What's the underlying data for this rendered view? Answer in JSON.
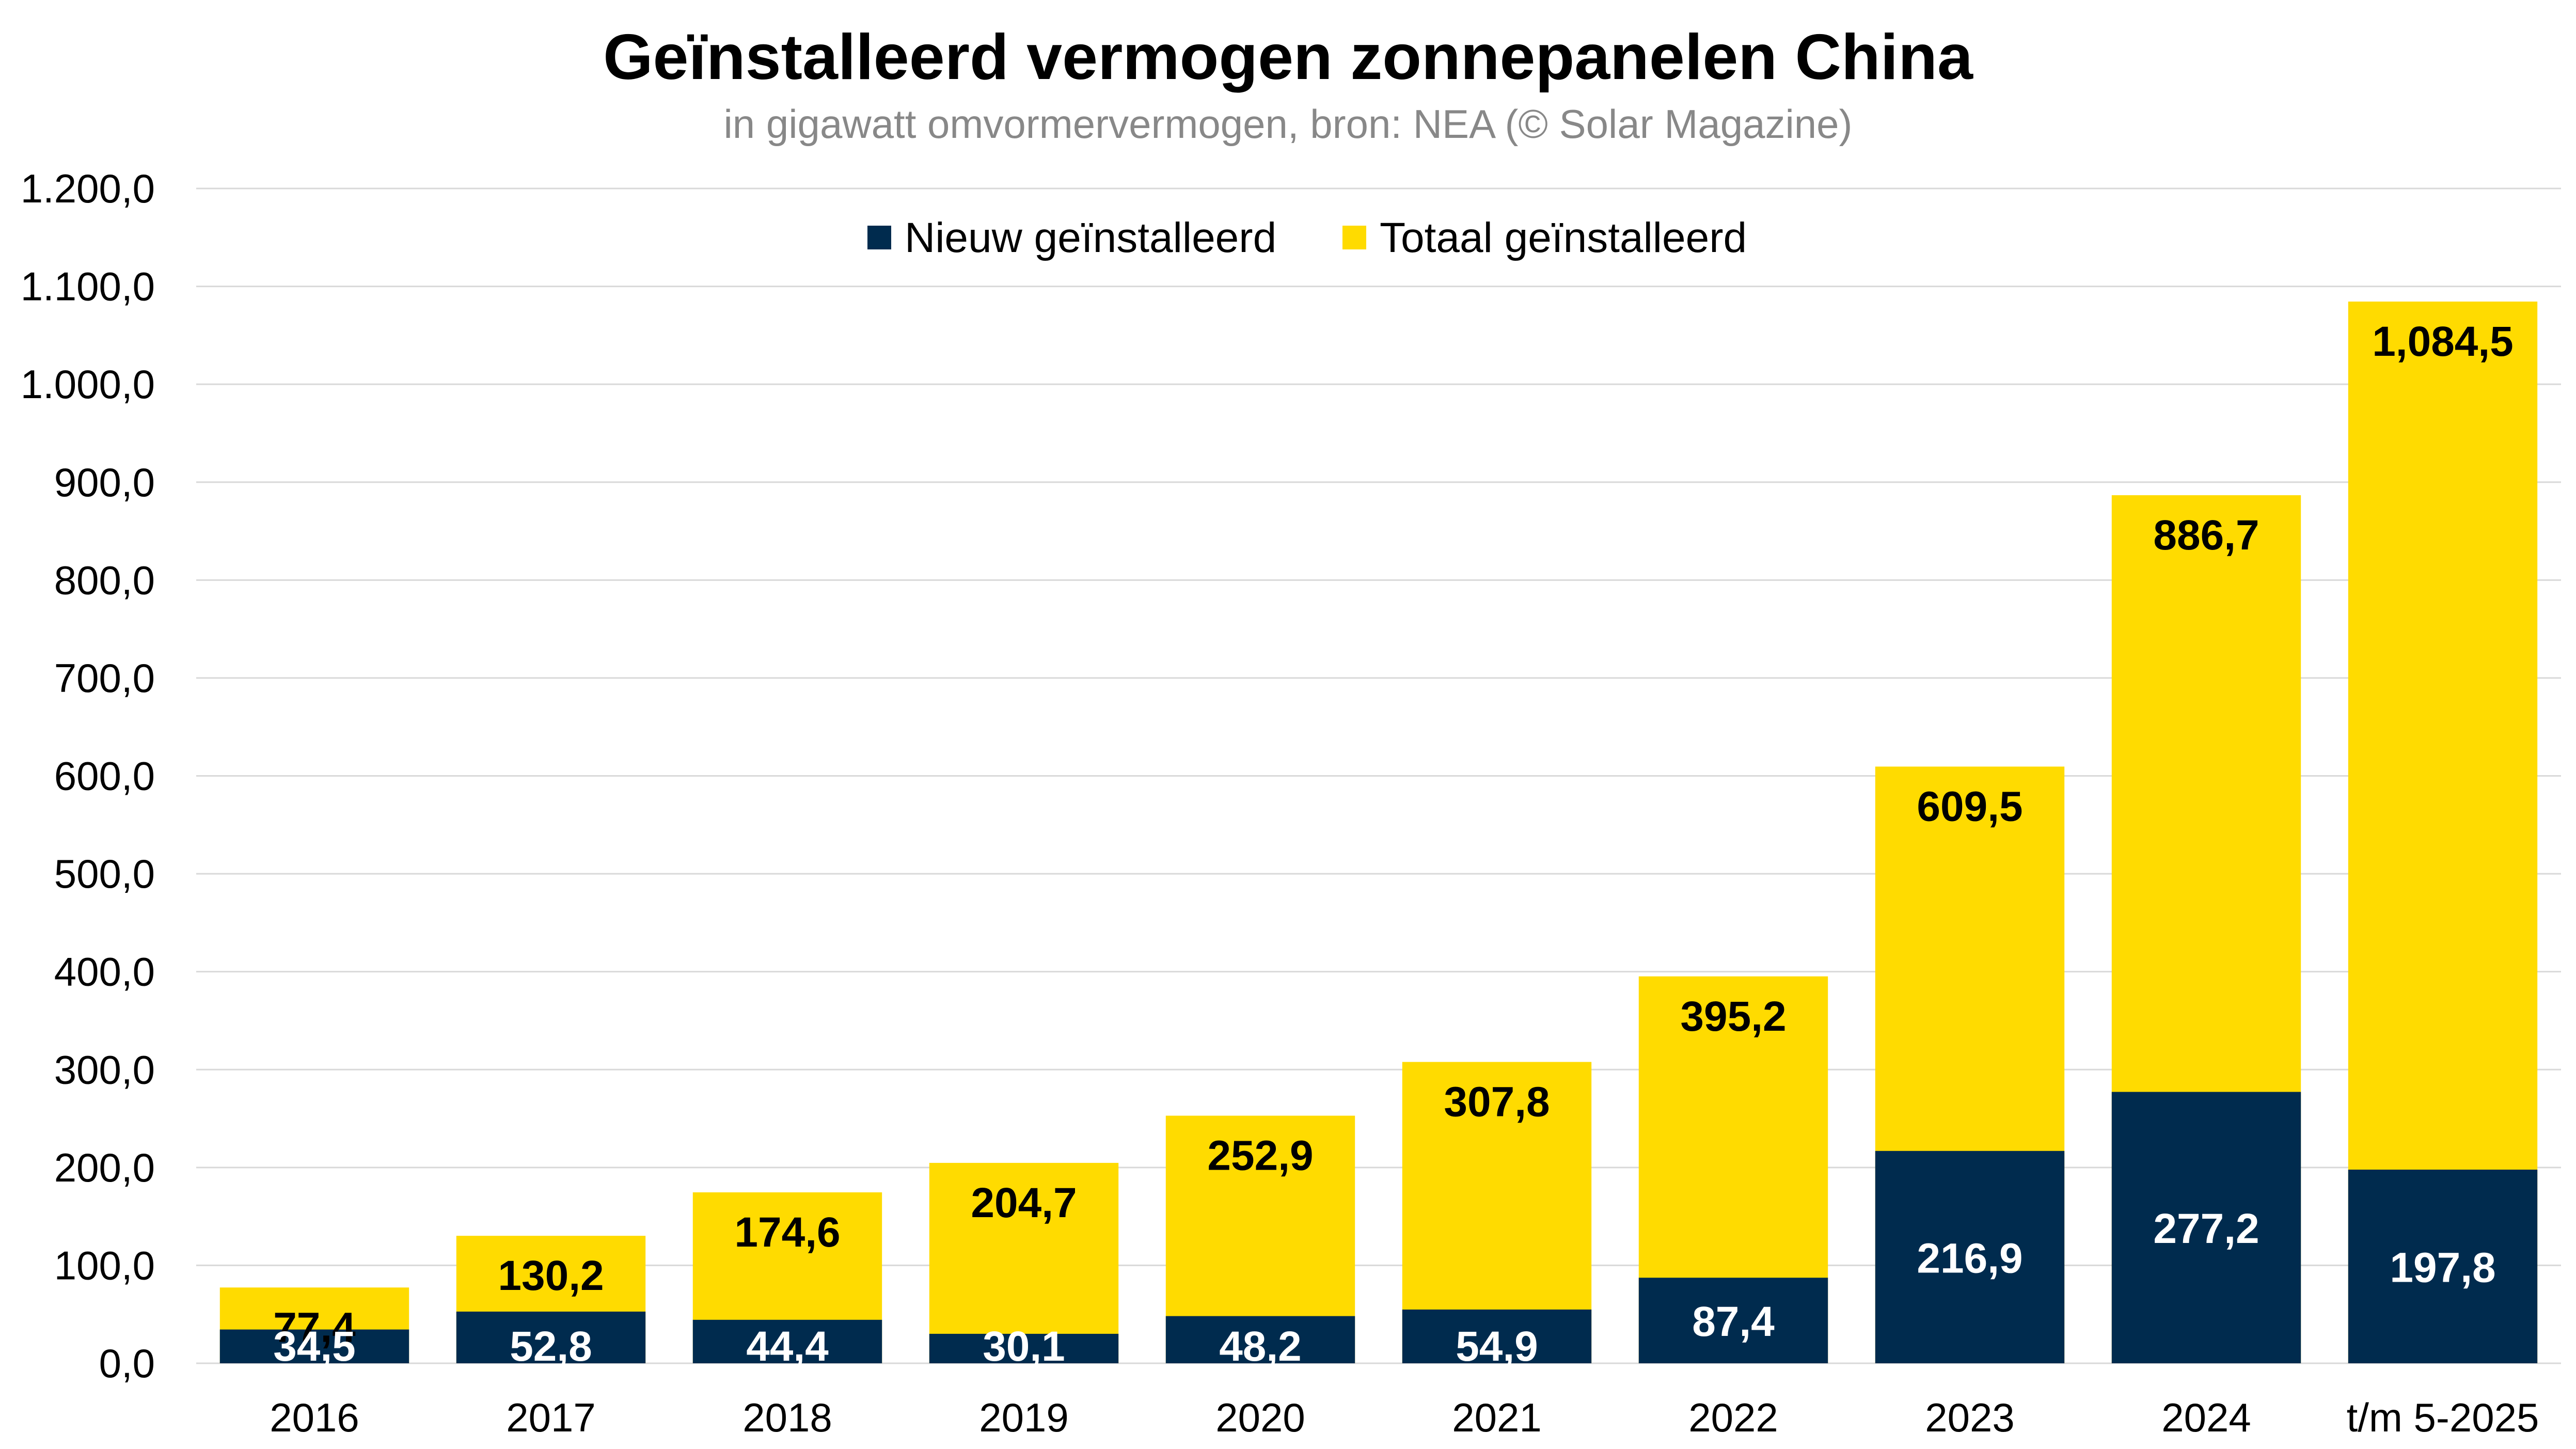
{
  "chart_data": {
    "type": "bar",
    "stacked": false,
    "overlap": true,
    "title": "Geïnstalleerd vermogen zonnepanelen China",
    "subtitle": "in gigawatt omvormervermogen, bron: NEA (© Solar Magazine)",
    "categories": [
      "2016",
      "2017",
      "2018",
      "2019",
      "2020",
      "2021",
      "2022",
      "2023",
      "2024",
      "t/m 5-2025"
    ],
    "series": [
      {
        "name": "Nieuw geïnstalleerd",
        "color": "#002B4E",
        "label_color": "#FFFFFF",
        "values": [
          34.5,
          52.8,
          44.4,
          30.1,
          48.2,
          54.9,
          87.4,
          216.9,
          277.2,
          197.8
        ],
        "labels": [
          "34,5",
          "52,8",
          "44,4",
          "30,1",
          "48,2",
          "54,9",
          "87,4",
          "216,9",
          "277,2",
          "197,8"
        ]
      },
      {
        "name": "Totaal geïnstalleerd",
        "color": "#FFDB00",
        "label_color": "#000000",
        "values": [
          77.4,
          130.2,
          174.6,
          204.7,
          252.9,
          307.8,
          395.2,
          609.5,
          886.7,
          1084.5
        ],
        "labels": [
          "77,4",
          "130,2",
          "174,6",
          "204,7",
          "252,9",
          "307,8",
          "395,2",
          "609,5",
          "886,7",
          "1,084,5"
        ]
      }
    ],
    "ylim": [
      0,
      1200
    ],
    "yticks": [
      0,
      100,
      200,
      300,
      400,
      500,
      600,
      700,
      800,
      900,
      1000,
      1100,
      1200
    ],
    "ytick_labels": [
      "0,0",
      "100,0",
      "200,0",
      "300,0",
      "400,0",
      "500,0",
      "600,0",
      "700,0",
      "800,0",
      "900,0",
      "1.000,0",
      "1.100,0",
      "1.200,0"
    ],
    "grid": true,
    "legend_position": "top-center",
    "gridline_color": "#D9D9D9"
  }
}
